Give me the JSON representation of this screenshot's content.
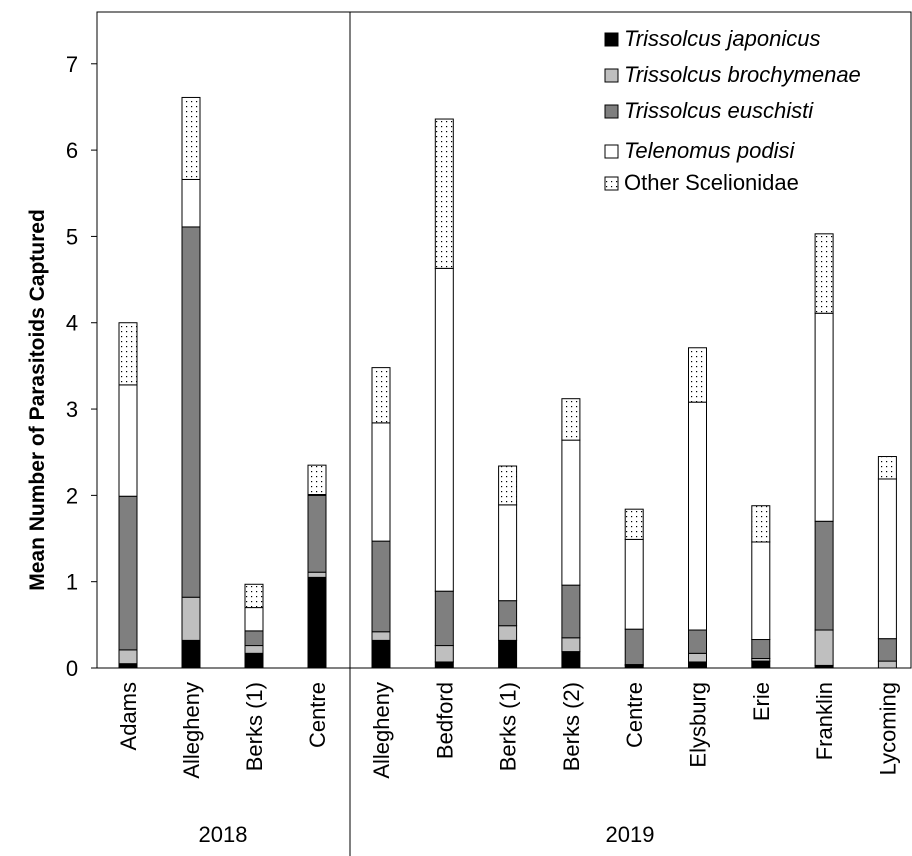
{
  "chart_data": {
    "type": "bar",
    "stacked": true,
    "ylabel": "Mean Number of Parasitoids Captured",
    "ylim": [
      0,
      7.6
    ],
    "yticks": [
      0,
      1,
      2,
      3,
      4,
      5,
      6,
      7
    ],
    "grid": false,
    "legend_position": "top-right",
    "groups": [
      {
        "label": "2018",
        "categories": [
          "Adams",
          "Allegheny",
          "Berks (1)",
          "Centre"
        ]
      },
      {
        "label": "2019",
        "categories": [
          "Allegheny",
          "Bedford",
          "Berks (1)",
          "Berks (2)",
          "Centre",
          "Elysburg",
          "Erie",
          "Franklin",
          "Lycoming"
        ]
      }
    ],
    "categories": [
      "Adams",
      "Allegheny",
      "Berks (1)",
      "Centre",
      "Allegheny",
      "Bedford",
      "Berks (1)",
      "Berks (2)",
      "Centre",
      "Elysburg",
      "Erie",
      "Franklin",
      "Lycoming"
    ],
    "series": [
      {
        "name": "Trissolcus japonicus",
        "italic": true,
        "color": "#000000",
        "pattern": "solid",
        "values": [
          0.05,
          0.32,
          0.17,
          1.05,
          0.32,
          0.07,
          0.32,
          0.19,
          0.03,
          0.07,
          0.08,
          0.03,
          0.0
        ]
      },
      {
        "name": "Trissolcus brochymenae",
        "italic": true,
        "color": "#bfbfbf",
        "pattern": "solid",
        "values": [
          0.16,
          0.5,
          0.09,
          0.06,
          0.1,
          0.19,
          0.17,
          0.16,
          0.01,
          0.1,
          0.03,
          0.41,
          0.08
        ]
      },
      {
        "name": "Trissolcus euschisti",
        "italic": true,
        "color": "#7f7f7f",
        "pattern": "solid",
        "values": [
          1.78,
          4.29,
          0.17,
          0.89,
          1.05,
          0.63,
          0.29,
          0.61,
          0.41,
          0.27,
          0.22,
          1.26,
          0.26
        ]
      },
      {
        "name": "Telenomus podisi",
        "italic": true,
        "color": "#ffffff",
        "pattern": "solid",
        "values": [
          1.29,
          0.55,
          0.27,
          0.01,
          1.37,
          3.74,
          1.11,
          1.68,
          1.04,
          2.64,
          1.13,
          2.41,
          1.85
        ]
      },
      {
        "name": "Other Scelionidae",
        "italic": false,
        "color": "#ffffff",
        "pattern": "dotted",
        "values": [
          0.72,
          0.95,
          0.27,
          0.34,
          0.64,
          1.73,
          0.45,
          0.48,
          0.35,
          0.63,
          0.42,
          0.92,
          0.26
        ]
      }
    ]
  }
}
